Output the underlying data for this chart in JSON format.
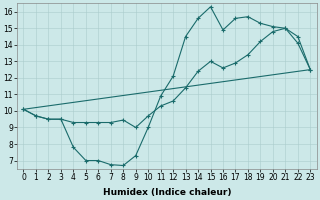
{
  "xlabel": "Humidex (Indice chaleur)",
  "bg_color": "#cce8e8",
  "grid_color": "#aacccc",
  "line_color": "#1a6b6b",
  "xlim": [
    -0.5,
    23.5
  ],
  "ylim": [
    6.5,
    16.5
  ],
  "xticks": [
    0,
    1,
    2,
    3,
    4,
    5,
    6,
    7,
    8,
    9,
    10,
    11,
    12,
    13,
    14,
    15,
    16,
    17,
    18,
    19,
    20,
    21,
    22,
    23
  ],
  "yticks": [
    7,
    8,
    9,
    10,
    11,
    12,
    13,
    14,
    15,
    16
  ],
  "line1_x": [
    0,
    1,
    2,
    3,
    4,
    5,
    6,
    7,
    8,
    9,
    10,
    11,
    12,
    13,
    14,
    15,
    16,
    17,
    18,
    19,
    20,
    21,
    22,
    23
  ],
  "line1_y": [
    10.1,
    9.7,
    9.5,
    9.5,
    7.8,
    7.0,
    7.0,
    6.75,
    6.7,
    7.3,
    9.0,
    10.9,
    12.1,
    14.5,
    15.6,
    16.3,
    14.9,
    15.6,
    15.7,
    15.3,
    15.1,
    15.0,
    14.1,
    12.5
  ],
  "line2_x": [
    0,
    1,
    2,
    3,
    4,
    5,
    6,
    7,
    8,
    9,
    10,
    11,
    12,
    13,
    14,
    15,
    16,
    17,
    18,
    19,
    20,
    21,
    22,
    23
  ],
  "line2_y": [
    10.1,
    9.7,
    9.5,
    9.5,
    9.3,
    9.3,
    9.3,
    9.3,
    9.45,
    9.0,
    9.7,
    10.3,
    10.6,
    11.4,
    12.4,
    13.0,
    12.6,
    12.9,
    13.4,
    14.2,
    14.8,
    15.0,
    14.5,
    12.5
  ],
  "line3_x": [
    0,
    23
  ],
  "line3_y": [
    10.1,
    12.5
  ],
  "marker_size": 2,
  "linewidth": 0.8,
  "tick_fontsize": 5.5,
  "xlabel_fontsize": 6.5
}
